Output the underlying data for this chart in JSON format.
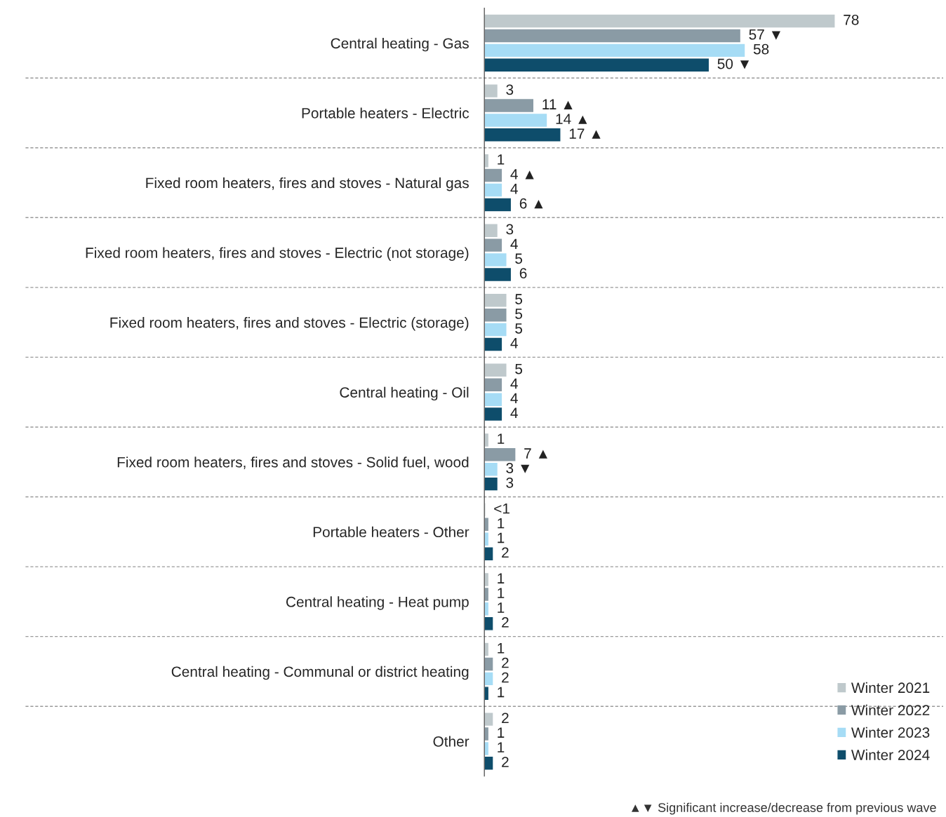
{
  "chart_data": {
    "type": "bar",
    "orientation": "horizontal",
    "categories": [
      "Central heating - Gas",
      "Portable heaters - Electric",
      "Fixed room heaters, fires and stoves - Natural gas",
      "Fixed room heaters, fires and stoves - Electric (not storage)",
      "Fixed room heaters, fires and stoves - Electric (storage)",
      "Central heating - Oil",
      "Fixed room heaters, fires and stoves - Solid fuel, wood",
      "Portable heaters - Other",
      "Central heating - Heat pump",
      "Central heating - Communal or district heating",
      "Other"
    ],
    "series": [
      {
        "name": "Winter 2021",
        "color": "#bfc9cc",
        "values": [
          78,
          3,
          1,
          3,
          5,
          5,
          1,
          0.3,
          1,
          1,
          2
        ],
        "value_labels": [
          "78",
          "3",
          "1",
          "3",
          "5",
          "5",
          "1",
          "<1",
          "1",
          "1",
          "2"
        ]
      },
      {
        "name": "Winter 2022",
        "color": "#8a9ba5",
        "values": [
          57,
          11,
          4,
          4,
          5,
          4,
          7,
          1,
          1,
          2,
          1
        ],
        "value_labels": [
          "57 ▼",
          "11 ▲",
          "4 ▲",
          "4",
          "5",
          "4",
          "7 ▲",
          "1",
          "1",
          "2",
          "1"
        ]
      },
      {
        "name": "Winter 2023",
        "color": "#a6dcf5",
        "values": [
          58,
          14,
          4,
          5,
          5,
          4,
          3,
          1,
          1,
          2,
          1
        ],
        "value_labels": [
          "58",
          "14 ▲",
          "4",
          "5",
          "5",
          "4",
          "3 ▼",
          "1",
          "1",
          "2",
          "1"
        ]
      },
      {
        "name": "Winter 2024",
        "color": "#0e4d6b",
        "values": [
          50,
          17,
          6,
          6,
          4,
          4,
          3,
          2,
          2,
          1,
          2
        ],
        "value_labels": [
          "50 ▼",
          "17 ▲",
          "6 ▲",
          "6",
          "4",
          "4",
          "3",
          "2",
          "2",
          "1",
          "2"
        ]
      }
    ],
    "xlim": [
      0,
      102
    ],
    "tick_labels": "y",
    "legend": "bottom right",
    "annotations": [
      "▲▼ Significant increase/decrease from previous wave"
    ]
  }
}
